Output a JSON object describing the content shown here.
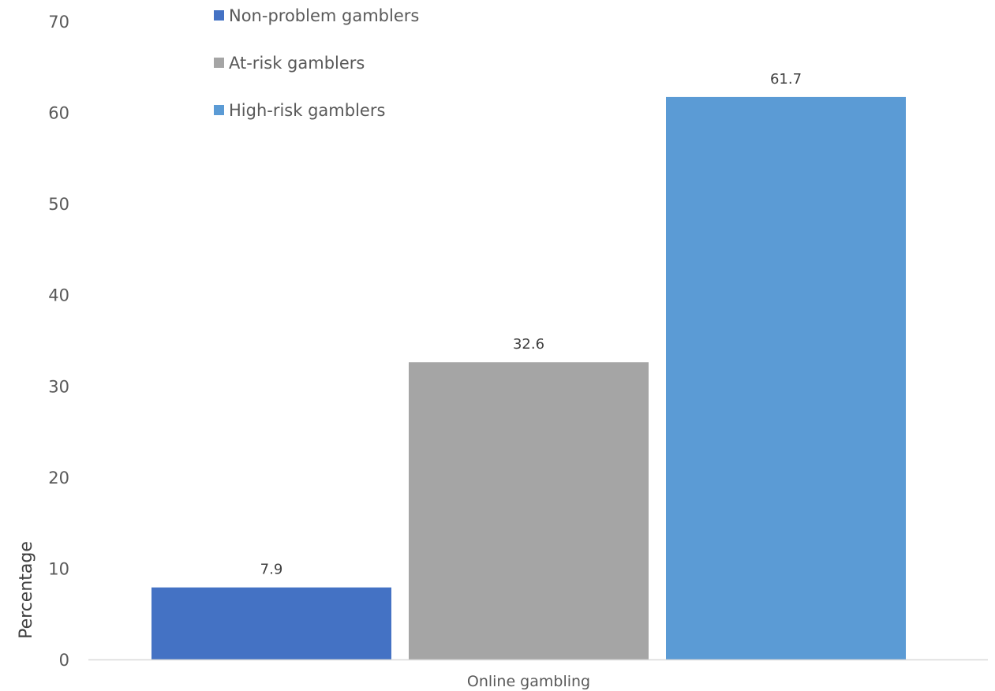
{
  "chart_data": {
    "type": "bar",
    "title": "",
    "xlabel": "",
    "ylabel": "Percentage",
    "categories": [
      "Online gambling"
    ],
    "ylim": [
      0,
      70
    ],
    "yticks": [
      0,
      10,
      20,
      30,
      40,
      50,
      60,
      70
    ],
    "grid": false,
    "legend_position": "top-left",
    "data_labels": true,
    "series": [
      {
        "name": "Non-problem gamblers",
        "values": [
          7.9
        ],
        "color": "#4472C4"
      },
      {
        "name": "At-risk gamblers",
        "values": [
          32.6
        ],
        "color": "#A5A5A5"
      },
      {
        "name": "High-risk gamblers",
        "values": [
          61.7
        ],
        "color": "#5B9BD5"
      }
    ]
  }
}
